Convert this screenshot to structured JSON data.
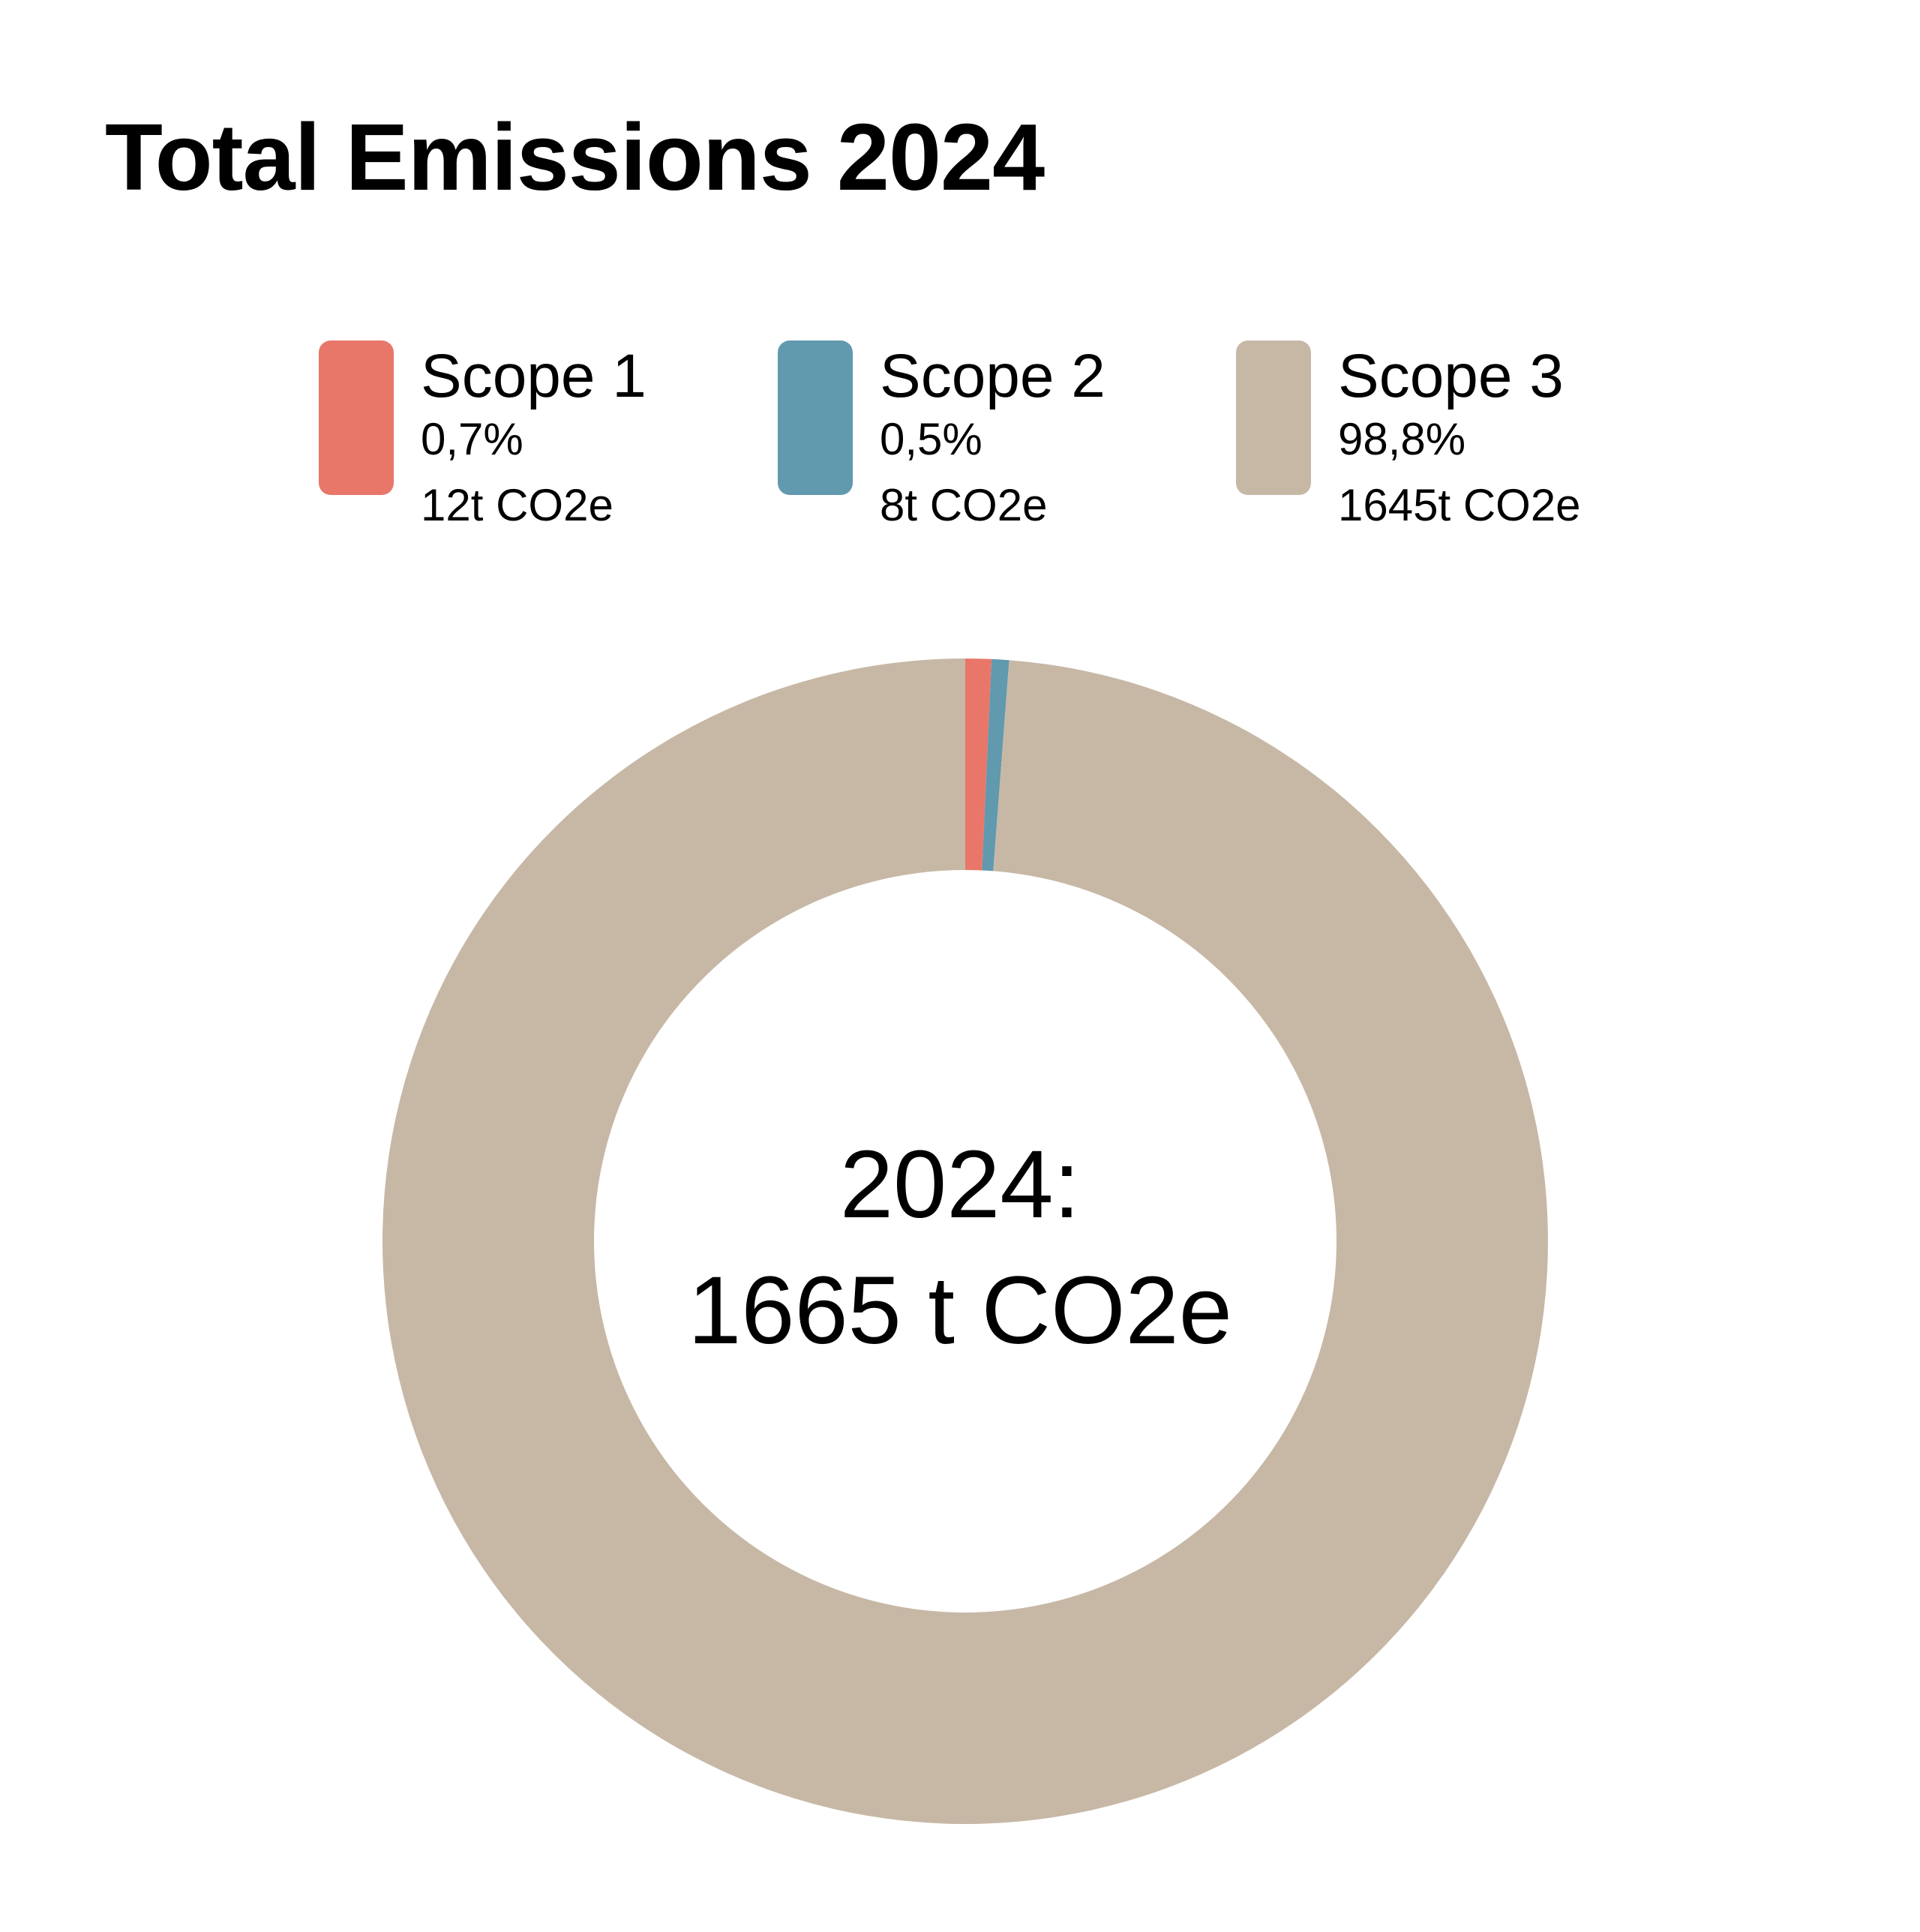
{
  "title": "Total Emissions 2024",
  "center": {
    "line1": "2024:",
    "line2": "1665 t CO2e"
  },
  "legend": [
    {
      "name": "Scope 1",
      "percent": "0,7%",
      "amount": "12t CO2e",
      "color": "#E8776A"
    },
    {
      "name": "Scope 2",
      "percent": "0,5%",
      "amount": "8t CO2e",
      "color": "#6199AF"
    },
    {
      "name": "Scope 3",
      "percent": "98,8%",
      "amount": "1645t CO2e",
      "color": "#C7B8A6"
    }
  ],
  "chart_data": {
    "type": "pie",
    "title": "Total Emissions 2024",
    "categories": [
      "Scope 1",
      "Scope 2",
      "Scope 3"
    ],
    "values": [
      12,
      8,
      1645
    ],
    "percentages": [
      0.7,
      0.5,
      98.8
    ],
    "unit": "t CO2e",
    "total": 1665,
    "colors": [
      "#E8776A",
      "#6199AF",
      "#C7B8A6"
    ],
    "donut": true,
    "legend_position": "top"
  }
}
